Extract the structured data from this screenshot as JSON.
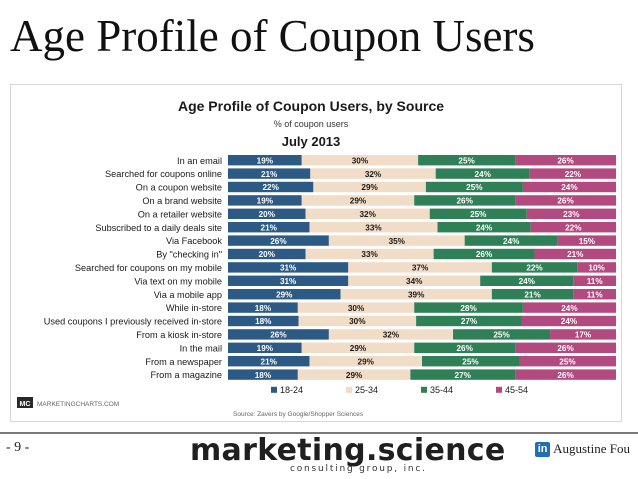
{
  "slide": {
    "title": "Age Profile of Coupon Users",
    "page_number": "- 9 -",
    "logo_main": "marketing.science",
    "logo_sub": "consulting group, inc.",
    "author_icon": "linkedin-icon",
    "author": "Augustine Fou"
  },
  "chart_data": {
    "type": "bar",
    "orientation": "horizontal",
    "stacked": true,
    "title": "Age Profile of Coupon Users, by Source",
    "subtitle": "% of coupon users",
    "date": "July 2013",
    "categories": [
      "In an email",
      "Searched for coupons online",
      "On a coupon website",
      "On a brand website",
      "On a retailer website",
      "Subscribed to a daily deals site",
      "Via Facebook",
      "By \"checking in\"",
      "Searched for coupons on my mobile",
      "Via text on my mobile",
      "Via a mobile app",
      "While in-store",
      "Used coupons I previously received in-store",
      "From a kiosk in-store",
      "In the mail",
      "From a newspaper",
      "From a magazine"
    ],
    "series": [
      {
        "name": "18-24",
        "color": "#2c5a84",
        "values": [
          19,
          21,
          22,
          19,
          20,
          21,
          26,
          20,
          31,
          31,
          29,
          18,
          18,
          26,
          19,
          21,
          18
        ]
      },
      {
        "name": "25-34",
        "color": "#f1dcc7",
        "values": [
          30,
          32,
          29,
          29,
          32,
          33,
          35,
          33,
          37,
          34,
          39,
          30,
          30,
          32,
          29,
          29,
          29
        ]
      },
      {
        "name": "35-44",
        "color": "#2f8057",
        "values": [
          25,
          24,
          25,
          26,
          25,
          24,
          24,
          26,
          22,
          24,
          21,
          28,
          27,
          25,
          26,
          25,
          27
        ]
      },
      {
        "name": "45-54",
        "color": "#b2497f",
        "values": [
          26,
          22,
          24,
          26,
          23,
          22,
          15,
          21,
          10,
          11,
          11,
          24,
          24,
          17,
          26,
          25,
          26
        ]
      }
    ],
    "xlim": [
      0,
      100
    ],
    "legend_position": "bottom",
    "source_note": "Source: Zavers by Google/Shopper Sciences",
    "watermark_logo": "MC",
    "watermark": "MARKETINGCHARTS.COM"
  }
}
